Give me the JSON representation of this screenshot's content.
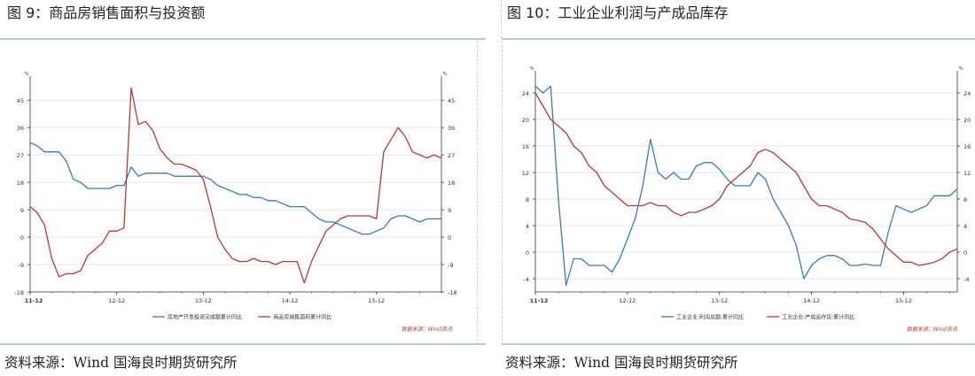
{
  "left": {
    "title": "图  9：商品房销售面积与投资额",
    "source": "资料来源：Wind 国海良时期货研究所",
    "chart_data": {
      "type": "line",
      "x_ticks": [
        "11-12",
        "12-12",
        "13-12",
        "14-12",
        "15-12"
      ],
      "x_tick_index": [
        0,
        12,
        24,
        36,
        48
      ],
      "yticks": [
        45,
        36,
        27,
        18,
        9,
        0,
        -9,
        -18
      ],
      "ylim": [
        -18,
        50
      ],
      "unit_left": "%",
      "unit_right": "%",
      "source_note": "数据来源：Wind资讯",
      "series": [
        {
          "name": "房地产开发投资完成额累计同比",
          "color": "#3a7ab8",
          "values": [
            31,
            30,
            28,
            28,
            28,
            25,
            19,
            18,
            16,
            16,
            16,
            16,
            17,
            17,
            23,
            20,
            21,
            21,
            21,
            21,
            20,
            20,
            20,
            20,
            20,
            19,
            17,
            16,
            15,
            14,
            14,
            13,
            13,
            12,
            12,
            11,
            10,
            10,
            10,
            8,
            6,
            5,
            5,
            4,
            3,
            2,
            1,
            1,
            2,
            3,
            6,
            7,
            7,
            6,
            5,
            6,
            6,
            6
          ]
        },
        {
          "name": "商品房销售面积累计同比",
          "color": "#b33a3a",
          "values": [
            10,
            8,
            4,
            -7,
            -13,
            -12,
            -12,
            -11,
            -6,
            -4,
            -2,
            2,
            2,
            3,
            49,
            37,
            38,
            35,
            29,
            26,
            24,
            24,
            23,
            22,
            19,
            10,
            0,
            -4,
            -7,
            -8,
            -8,
            -7,
            -8,
            -8,
            -9,
            -8,
            -8,
            -8,
            -15,
            -8,
            -3,
            2,
            4,
            6,
            7,
            7,
            7,
            7,
            6,
            28,
            32,
            36,
            33,
            28,
            27,
            26,
            27,
            26
          ]
        }
      ]
    }
  },
  "right": {
    "title": "图  10：工业企业利润与产成品库存",
    "source": "资料来源：Wind 国海良时期货研究所",
    "chart_data": {
      "type": "line",
      "x_ticks": [
        "11-12",
        "12-12",
        "13-12",
        "14-12",
        "15-12"
      ],
      "x_tick_index": [
        0,
        12,
        24,
        36,
        48
      ],
      "yticks": [
        24,
        20,
        16,
        12,
        8,
        4,
        0,
        -4
      ],
      "ylim": [
        -6,
        26
      ],
      "unit_left": "%",
      "unit_right": "%",
      "source_note": "数据来源：Wind资讯",
      "series": [
        {
          "name": "工业企业:利润总额:累计同比",
          "color": "#3a7ab8",
          "values": [
            25,
            24,
            25,
            8,
            -5,
            -1,
            -1,
            -2,
            -2,
            -2,
            -3,
            -1,
            2,
            5,
            10,
            17,
            12,
            11,
            12,
            11,
            11,
            13,
            13.5,
            13.5,
            12.5,
            11,
            10,
            10,
            10,
            12,
            11,
            8,
            6,
            4,
            1,
            -4,
            -2,
            -1,
            -0.5,
            -0.5,
            -1,
            -2,
            -2,
            -1.8,
            -2,
            -2,
            3,
            7,
            6.5,
            6,
            6.5,
            7,
            8.5,
            8.5,
            8.5,
            9.5
          ]
        },
        {
          "name": "工业企业:产成品存货:累计同比",
          "color": "#b33a3a",
          "values": [
            24,
            22,
            20,
            19,
            18,
            16,
            15,
            13,
            12,
            10,
            9,
            8,
            7,
            7,
            7,
            7.5,
            7,
            7,
            6,
            5.5,
            6,
            6,
            6.5,
            7,
            8,
            10,
            11,
            12,
            13,
            15,
            15.5,
            15,
            14,
            13,
            12,
            10,
            8,
            7,
            7,
            6.5,
            6,
            5,
            4.8,
            4.5,
            3.5,
            2,
            0.5,
            -0.5,
            -1.5,
            -1.5,
            -2,
            -1.8,
            -1.5,
            -1,
            0,
            0.5
          ]
        }
      ]
    }
  }
}
